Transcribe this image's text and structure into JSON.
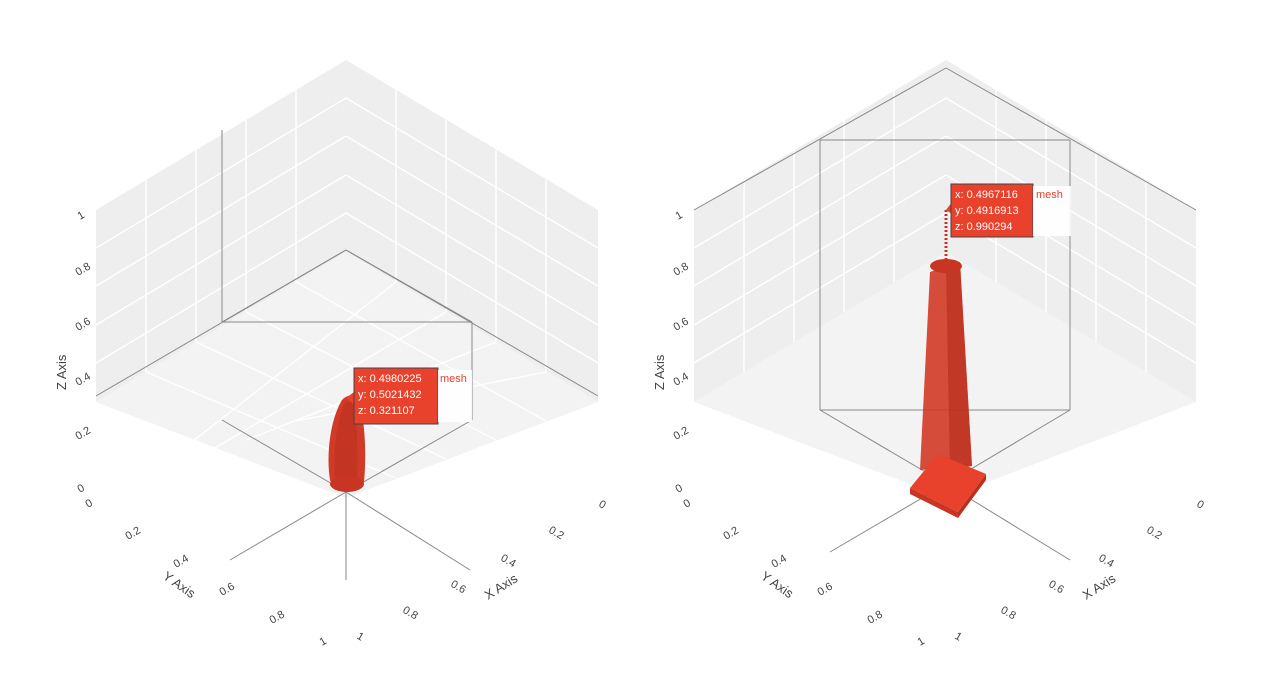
{
  "chart_data": [
    {
      "type": "mesh3d",
      "axes": {
        "x": {
          "title": "X Axis",
          "range": [
            0,
            1
          ],
          "ticks": [
            "0",
            "0.2",
            "0.4",
            "0.6",
            "0.8",
            "1"
          ]
        },
        "y": {
          "title": "Y Axis",
          "range": [
            0,
            1
          ],
          "ticks": [
            "0",
            "0.2",
            "0.4",
            "0.6",
            "0.8",
            "1"
          ]
        },
        "z": {
          "title": "Z Axis",
          "range": [
            0,
            1
          ],
          "ticks": [
            "0",
            "0.2",
            "0.4",
            "0.6",
            "0.8",
            "1"
          ]
        }
      },
      "mesh_color": "#e8412c",
      "hover": {
        "x": "0.4980225",
        "y": "0.5021432",
        "z": "0.321107",
        "name": "mesh"
      }
    },
    {
      "type": "mesh3d",
      "axes": {
        "x": {
          "title": "X Axis",
          "range": [
            0,
            1
          ],
          "ticks": [
            "0",
            "0.2",
            "0.4",
            "0.6",
            "0.8",
            "1"
          ]
        },
        "y": {
          "title": "Y Axis",
          "range": [
            0,
            1
          ],
          "ticks": [
            "0",
            "0.2",
            "0.4",
            "0.6",
            "0.8",
            "1"
          ]
        },
        "z": {
          "title": "Z Axis",
          "range": [
            0,
            1
          ],
          "ticks": [
            "0",
            "0.2",
            "0.4",
            "0.6",
            "0.8",
            "1"
          ]
        }
      },
      "mesh_color": "#e8412c",
      "hover": {
        "x": "0.4967116",
        "y": "0.4916913",
        "z": "0.990294",
        "name": "mesh"
      }
    }
  ]
}
